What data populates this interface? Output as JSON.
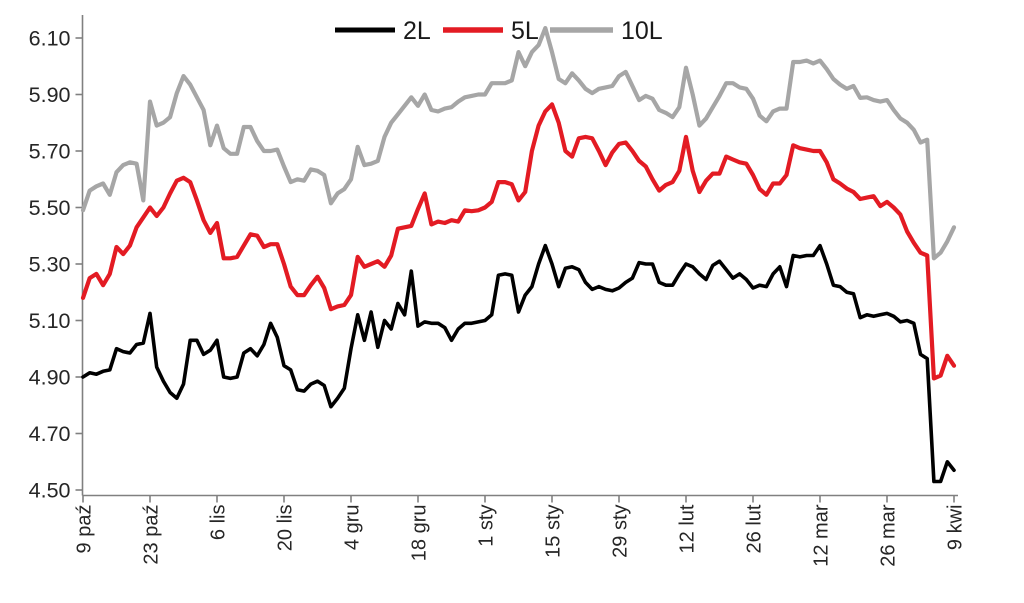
{
  "chart_data": {
    "type": "line",
    "title": "",
    "xlabel": "",
    "ylabel": "",
    "grid": false,
    "legend_position": "top",
    "x_tick_labels": [
      "9 paź",
      "23 paź",
      "6 lis",
      "20 lis",
      "4 gru",
      "18 gru",
      "1 sty",
      "15 sty",
      "29 sty",
      "12 lut",
      "26 lut",
      "12 mar",
      "26 mar",
      "9 kwi"
    ],
    "points_per_tick": 10,
    "y_ticks": [
      4.5,
      4.7,
      4.9,
      5.1,
      5.3,
      5.5,
      5.7,
      5.9,
      6.1
    ],
    "y_tick_format_decimals": 2,
    "ylim": [
      4.5,
      6.1
    ],
    "axis_color": "#808080",
    "tick_label_color": "#262626",
    "series": [
      {
        "name": "2L",
        "color": "#000000",
        "stroke_width": 3.6,
        "values": [
          4.9,
          4.915,
          4.91,
          4.92,
          4.925,
          5.0,
          4.99,
          4.985,
          5.015,
          5.02,
          5.125,
          4.935,
          4.885,
          4.845,
          4.825,
          4.875,
          5.03,
          5.03,
          4.98,
          4.995,
          5.03,
          4.9,
          4.895,
          4.9,
          4.985,
          5.0,
          4.975,
          5.015,
          5.09,
          5.04,
          4.94,
          4.925,
          4.855,
          4.85,
          4.875,
          4.885,
          4.87,
          4.795,
          4.825,
          4.86,
          5.0,
          5.12,
          5.03,
          5.13,
          5.005,
          5.1,
          5.07,
          5.16,
          5.12,
          5.275,
          5.08,
          5.095,
          5.09,
          5.09,
          5.075,
          5.03,
          5.07,
          5.09,
          5.09,
          5.095,
          5.1,
          5.12,
          5.26,
          5.265,
          5.26,
          5.13,
          5.19,
          5.22,
          5.3,
          5.365,
          5.3,
          5.22,
          5.285,
          5.29,
          5.28,
          5.235,
          5.21,
          5.22,
          5.21,
          5.205,
          5.215,
          5.235,
          5.25,
          5.305,
          5.3,
          5.3,
          5.235,
          5.225,
          5.225,
          5.265,
          5.3,
          5.29,
          5.265,
          5.245,
          5.295,
          5.31,
          5.28,
          5.25,
          5.265,
          5.245,
          5.215,
          5.225,
          5.22,
          5.265,
          5.29,
          5.22,
          5.33,
          5.325,
          5.33,
          5.33,
          5.365,
          5.3,
          5.225,
          5.22,
          5.2,
          5.195,
          5.11,
          5.12,
          5.115,
          5.12,
          5.125,
          5.115,
          5.095,
          5.1,
          5.09,
          4.98,
          4.965,
          4.53,
          4.53,
          4.6,
          4.57
        ]
      },
      {
        "name": "5L",
        "color": "#e31b23",
        "stroke_width": 4.2,
        "values": [
          5.18,
          5.25,
          5.265,
          5.225,
          5.265,
          5.36,
          5.335,
          5.365,
          5.43,
          5.465,
          5.5,
          5.47,
          5.5,
          5.55,
          5.595,
          5.605,
          5.59,
          5.525,
          5.455,
          5.41,
          5.445,
          5.32,
          5.32,
          5.325,
          5.365,
          5.405,
          5.4,
          5.36,
          5.37,
          5.37,
          5.3,
          5.22,
          5.19,
          5.19,
          5.225,
          5.255,
          5.215,
          5.14,
          5.15,
          5.155,
          5.19,
          5.325,
          5.29,
          5.3,
          5.31,
          5.29,
          5.33,
          5.425,
          5.43,
          5.435,
          5.495,
          5.55,
          5.44,
          5.45,
          5.445,
          5.455,
          5.45,
          5.49,
          5.487,
          5.49,
          5.5,
          5.52,
          5.59,
          5.59,
          5.582,
          5.525,
          5.555,
          5.7,
          5.79,
          5.84,
          5.865,
          5.8,
          5.7,
          5.68,
          5.745,
          5.75,
          5.745,
          5.7,
          5.65,
          5.695,
          5.725,
          5.73,
          5.7,
          5.665,
          5.645,
          5.6,
          5.56,
          5.58,
          5.59,
          5.63,
          5.75,
          5.63,
          5.555,
          5.595,
          5.62,
          5.62,
          5.68,
          5.67,
          5.66,
          5.655,
          5.615,
          5.565,
          5.545,
          5.585,
          5.585,
          5.615,
          5.72,
          5.71,
          5.705,
          5.7,
          5.7,
          5.66,
          5.6,
          5.585,
          5.567,
          5.555,
          5.53,
          5.535,
          5.54,
          5.505,
          5.52,
          5.5,
          5.475,
          5.415,
          5.375,
          5.34,
          5.33,
          4.895,
          4.905,
          4.975,
          4.94
        ]
      },
      {
        "name": "10L",
        "color": "#a6a6a6",
        "stroke_width": 4.2,
        "values": [
          5.49,
          5.56,
          5.575,
          5.585,
          5.545,
          5.625,
          5.65,
          5.66,
          5.655,
          5.525,
          5.875,
          5.79,
          5.8,
          5.82,
          5.905,
          5.965,
          5.935,
          5.89,
          5.845,
          5.72,
          5.79,
          5.71,
          5.69,
          5.69,
          5.785,
          5.785,
          5.735,
          5.7,
          5.7,
          5.705,
          5.645,
          5.59,
          5.6,
          5.595,
          5.635,
          5.63,
          5.615,
          5.515,
          5.55,
          5.565,
          5.6,
          5.715,
          5.65,
          5.655,
          5.665,
          5.75,
          5.8,
          5.83,
          5.86,
          5.89,
          5.86,
          5.9,
          5.845,
          5.84,
          5.85,
          5.855,
          5.875,
          5.89,
          5.895,
          5.9,
          5.9,
          5.94,
          5.94,
          5.94,
          5.95,
          6.05,
          6.0,
          6.05,
          6.075,
          6.135,
          6.05,
          5.955,
          5.94,
          5.975,
          5.95,
          5.92,
          5.905,
          5.92,
          5.925,
          5.93,
          5.965,
          5.98,
          5.93,
          5.88,
          5.895,
          5.885,
          5.845,
          5.835,
          5.82,
          5.855,
          5.995,
          5.9,
          5.79,
          5.815,
          5.855,
          5.895,
          5.94,
          5.94,
          5.925,
          5.92,
          5.885,
          5.825,
          5.805,
          5.84,
          5.85,
          5.85,
          6.015,
          6.015,
          6.02,
          6.01,
          6.02,
          5.99,
          5.955,
          5.935,
          5.92,
          5.93,
          5.888,
          5.89,
          5.88,
          5.875,
          5.88,
          5.845,
          5.815,
          5.8,
          5.775,
          5.73,
          5.74,
          5.32,
          5.34,
          5.38,
          5.43
        ]
      }
    ]
  }
}
